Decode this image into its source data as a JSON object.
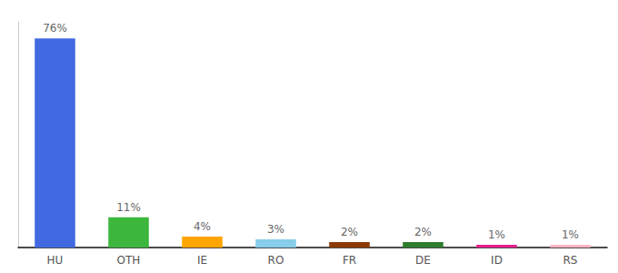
{
  "chart_data": {
    "type": "bar",
    "categories": [
      "HU",
      "OTH",
      "IE",
      "RO",
      "FR",
      "DE",
      "ID",
      "RS"
    ],
    "values": [
      76,
      11,
      4,
      3,
      2,
      2,
      1,
      1
    ],
    "value_labels": [
      "76%",
      "11%",
      "4%",
      "3%",
      "2%",
      "2%",
      "1%",
      "1%"
    ],
    "colors": [
      "#4169E1",
      "#3CB63C",
      "#FFA500",
      "#87CEEB",
      "#8B3A00",
      "#2E7D2E",
      "#E91E8C",
      "#FFB6C1"
    ],
    "ylim": [
      0,
      82
    ],
    "grid": false,
    "data_labels": true,
    "tick_labels": "x"
  }
}
